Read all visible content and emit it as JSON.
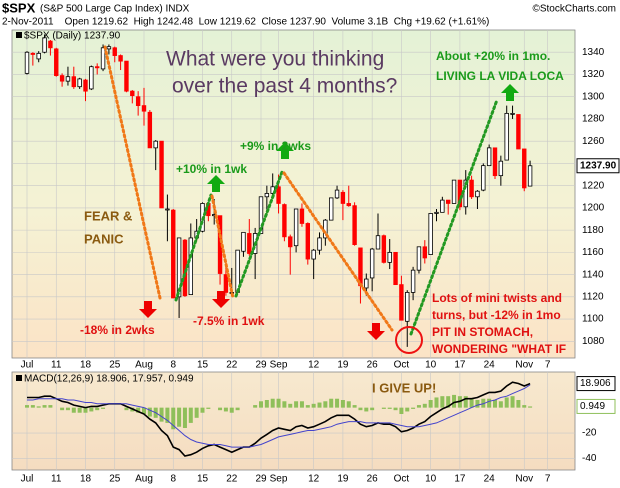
{
  "header": {
    "symbol": "$SPX",
    "name": "(S&P 500 Large Cap Index) INDX",
    "source": "©StockCharts.com",
    "quote": "2-Nov-2011    Open 1219.62  High 1242.48  Low 1219.62  Close 1237.90  Volume 3.1B  Chg +19.62 (+1.61%)"
  },
  "annotations": [
    "What were you thinking",
    "over the past 4 months?",
    "About +20% in 1mo.",
    "LIVING LA VIDA LOCA",
    "+10% in 1wk",
    "+9% in 2wks",
    "FEAR &",
    "PANIC",
    "-18% in 2wks",
    "-7.5% in 1wk",
    "Lots of mini twists and",
    "turns, but -12% in 1mo",
    "PIT IN STOMACH,",
    "WONDERING \"WHAT IF",
    "I GIVE UP!"
  ],
  "chart_data": [
    {
      "type": "candlestick",
      "legend": "$SPX (Daily) 1237.90",
      "categories": [
        "Jul",
        null,
        null,
        null,
        null,
        "11",
        null,
        null,
        null,
        null,
        "18",
        null,
        null,
        null,
        null,
        "25",
        null,
        null,
        null,
        null,
        "Aug",
        null,
        null,
        null,
        null,
        "8",
        null,
        null,
        null,
        null,
        "15",
        null,
        null,
        null,
        null,
        "22",
        null,
        null,
        null,
        null,
        "29",
        null,
        null,
        "Sep",
        null,
        null,
        null,
        null,
        null,
        "12",
        null,
        null,
        null,
        null,
        "19",
        null,
        null,
        null,
        null,
        "26",
        null,
        null,
        null,
        null,
        "Oct",
        null,
        null,
        null,
        null,
        "10",
        null,
        null,
        null,
        null,
        "17",
        null,
        null,
        null,
        null,
        "24",
        null,
        null,
        null,
        null,
        null,
        "Nov",
        null,
        null,
        null,
        "7"
      ],
      "open": [
        1321,
        1339,
        1334,
        1340,
        1350,
        1343,
        1319,
        1314,
        1318,
        1309,
        1315,
        1307,
        1327,
        1325,
        1343,
        1344,
        1337,
        1332,
        1305,
        1300,
        1292,
        1286,
        1254,
        1260,
        1199,
        1198,
        1120,
        1171,
        1122,
        1173,
        1179,
        1204,
        1193,
        1193,
        1140,
        1124,
        1124,
        1161,
        1177,
        1159,
        1177,
        1210,
        1213,
        1219,
        1203,
        1174,
        1166,
        1199,
        1186,
        1154,
        1162,
        1173,
        1189,
        1209,
        1214,
        1204,
        1202,
        1164,
        1128,
        1137,
        1163,
        1175,
        1151,
        1160,
        1131,
        1098,
        1124,
        1144,
        1165,
        1158,
        1195,
        1196,
        1207,
        1204,
        1225,
        1201,
        1225,
        1210,
        1216,
        1238,
        1254,
        1229,
        1243,
        1285,
        1284,
        1253,
        1219.62,
        null,
        null,
        null
      ],
      "high": [
        1341,
        1340,
        1341,
        1356,
        1351,
        1344,
        1321,
        1327,
        1327,
        1317,
        1316,
        1328,
        1330,
        1347,
        1347,
        1345,
        1338,
        1332,
        1306,
        1305,
        1308,
        1288,
        1261,
        1260,
        1212,
        1199,
        1173,
        1172,
        1186,
        1190,
        1205,
        1204,
        1208,
        1193,
        1154,
        1146,
        1162,
        1178,
        1190,
        1182,
        1210,
        1220,
        1231,
        1230,
        1204,
        1176,
        1199,
        1204,
        1187,
        1163,
        1178,
        1190,
        1209,
        1220,
        1216,
        1220,
        1205,
        1164,
        1141,
        1164,
        1195,
        1176,
        1172,
        1160,
        1139,
        1126,
        1147,
        1165,
        1171,
        1195,
        1199,
        1210,
        1207,
        1225,
        1225,
        1234,
        1229,
        1216,
        1240,
        1257,
        1254,
        1247,
        1292,
        1292,
        1284,
        1253,
        1242.48,
        null,
        null,
        null
      ],
      "low": [
        1320,
        1328,
        1331,
        1339,
        1337,
        1318,
        1309,
        1310,
        1307,
        1307,
        1296,
        1306,
        1320,
        1323,
        1338,
        1331,
        1324,
        1304,
        1294,
        1283,
        1274,
        1254,
        1234,
        1200,
        1170,
        1119,
        1101,
        1120,
        1122,
        1170,
        1178,
        1188,
        1185,
        1131,
        1121,
        1121,
        1124,
        1156,
        1157,
        1136,
        1177,
        1195,
        1209,
        1195,
        1170,
        1140,
        1160,
        1183,
        1149,
        1136,
        1158,
        1166,
        1189,
        1208,
        1189,
        1201,
        1166,
        1114,
        1121,
        1125,
        1163,
        1150,
        1145,
        1131,
        1099,
        1075,
        1117,
        1141,
        1150,
        1158,
        1188,
        1196,
        1194,
        1204,
        1198,
        1194,
        1208,
        1199,
        1215,
        1238,
        1226,
        1220,
        1243,
        1280,
        1253,
        1215,
        1219.62,
        null,
        null,
        null
      ],
      "close": [
        1340,
        1338,
        1339,
        1353,
        1344,
        1319,
        1314,
        1318,
        1309,
        1316,
        1305,
        1327,
        1326,
        1344,
        1345,
        1337,
        1332,
        1305,
        1301,
        1292,
        1287,
        1254,
        1260,
        1200,
        1199,
        1119,
        1173,
        1121,
        1173,
        1179,
        1204,
        1193,
        1194,
        1141,
        1124,
        1124,
        1162,
        1178,
        1159,
        1177,
        1210,
        1213,
        1219,
        1204,
        1174,
        1165,
        1199,
        1186,
        1154,
        1162,
        1173,
        1189,
        1209,
        1216,
        1204,
        1202,
        1167,
        1130,
        1136,
        1163,
        1175,
        1151,
        1160,
        1131,
        1099,
        1124,
        1144,
        1165,
        1155,
        1195,
        1196,
        1207,
        1204,
        1225,
        1201,
        1225,
        1210,
        1215,
        1238,
        1254,
        1229,
        1242,
        1285,
        1285,
        1253,
        1218,
        1237.9,
        null,
        null,
        null
      ],
      "close_label": "1237.90",
      "up_color": "#000000",
      "down_color": "#ff0000",
      "ylim": [
        1065,
        1360
      ],
      "yticks": [
        1080,
        1100,
        1120,
        1140,
        1160,
        1180,
        1200,
        1220,
        1240,
        1260,
        1280,
        1300,
        1320,
        1340
      ],
      "grid": true
    },
    {
      "type": "macd",
      "legend": "MACD(12,26,9) 18.906, 17.957, 0.949",
      "categories": [
        "Jul",
        null,
        null,
        null,
        null,
        "11",
        null,
        null,
        null,
        null,
        "18",
        null,
        null,
        null,
        null,
        "25",
        null,
        null,
        null,
        null,
        "Aug",
        null,
        null,
        null,
        null,
        "8",
        null,
        null,
        null,
        null,
        "15",
        null,
        null,
        null,
        null,
        "22",
        null,
        null,
        null,
        null,
        "29",
        null,
        null,
        "Sep",
        null,
        null,
        null,
        null,
        null,
        "12",
        null,
        null,
        null,
        null,
        "19",
        null,
        null,
        null,
        null,
        "26",
        null,
        null,
        null,
        null,
        "Oct",
        null,
        null,
        null,
        null,
        "10",
        null,
        null,
        null,
        null,
        "17",
        null,
        null,
        null,
        null,
        "24",
        null,
        null,
        null,
        null,
        null,
        "Nov",
        null,
        null,
        null,
        "7"
      ],
      "series": [
        {
          "kind": "bar",
          "color": "#8fbf5a",
          "values": [
            2,
            2,
            1,
            2,
            2,
            0,
            -2,
            -2,
            -4,
            -4,
            -4,
            -3,
            -2,
            -1,
            0,
            0,
            0,
            -2,
            -3,
            -4,
            -5,
            -7,
            -8,
            -11,
            -12,
            -17,
            -15,
            -16,
            -12,
            -8,
            -4,
            -1,
            0,
            -2,
            -3,
            -4,
            -2,
            0,
            0,
            2,
            5,
            6,
            7,
            7,
            5,
            3,
            5,
            5,
            2,
            3,
            4,
            5,
            7,
            7,
            6,
            5,
            2,
            -2,
            -3,
            -2,
            0,
            -1,
            -1,
            -2,
            -5,
            -3,
            -1,
            2,
            3,
            6,
            8,
            9,
            9,
            10,
            9,
            9,
            7,
            6,
            7,
            7,
            6,
            5,
            8,
            9,
            6,
            2,
            0.949,
            null,
            null,
            null
          ]
        },
        {
          "kind": "line",
          "color": "#000000",
          "values": [
            8,
            8,
            8,
            9,
            9,
            7,
            5,
            4,
            2,
            1,
            0,
            1,
            1,
            2,
            3,
            3,
            3,
            1,
            -1,
            -3,
            -5,
            -9,
            -12,
            -18,
            -22,
            -31,
            -33,
            -38,
            -37,
            -35,
            -32,
            -30,
            -29,
            -31,
            -33,
            -35,
            -33,
            -31,
            -31,
            -28,
            -24,
            -21,
            -18,
            -16,
            -17,
            -18,
            -15,
            -14,
            -16,
            -15,
            -13,
            -11,
            -8,
            -6,
            -6,
            -6,
            -9,
            -13,
            -15,
            -14,
            -12,
            -13,
            -13,
            -15,
            -19,
            -18,
            -16,
            -13,
            -11,
            -7,
            -4,
            -1,
            1,
            4,
            5,
            7,
            7,
            8,
            10,
            12,
            12,
            13,
            17,
            20,
            19,
            17,
            18.906,
            null,
            null,
            null
          ]
        },
        {
          "kind": "line",
          "color": "#4444cc",
          "values": [
            6,
            6,
            7,
            7,
            7,
            7,
            7,
            6,
            6,
            5,
            4,
            4,
            3,
            3,
            3,
            3,
            3,
            3,
            2,
            1,
            0,
            -2,
            -4,
            -7,
            -10,
            -14,
            -18,
            -22,
            -25,
            -27,
            -28,
            -29,
            -29,
            -29,
            -30,
            -31,
            -31,
            -31,
            -31,
            -30,
            -29,
            -27,
            -25,
            -23,
            -22,
            -21,
            -20,
            -19,
            -18,
            -18,
            -17,
            -16,
            -15,
            -13,
            -12,
            -11,
            -11,
            -11,
            -12,
            -12,
            -12,
            -12,
            -12,
            -13,
            -14,
            -15,
            -15,
            -15,
            -14,
            -13,
            -12,
            -10,
            -8,
            -6,
            -4,
            -2,
            0,
            2,
            3,
            5,
            6,
            8,
            9,
            11,
            13,
            15,
            17.957,
            null,
            null,
            null
          ]
        }
      ],
      "ylim": [
        -49,
        28
      ],
      "yticks": [
        -40,
        -20
      ],
      "grid": true
    }
  ]
}
